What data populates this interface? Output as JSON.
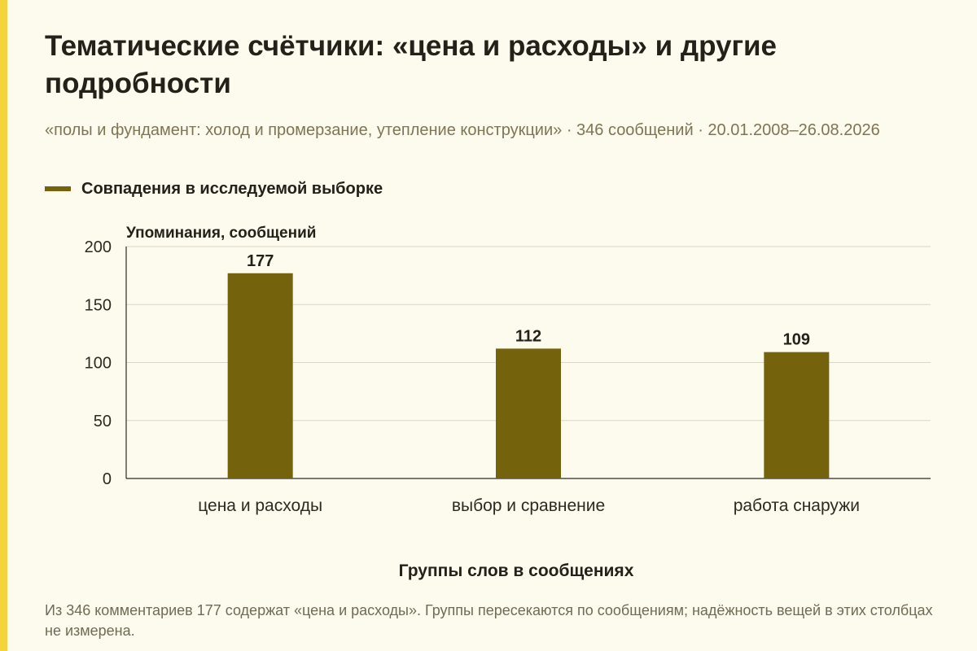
{
  "title": "Тематические счётчики: «цена и расходы» и другие подробности",
  "subtitle": "«полы и фундамент: холод и промерзание, утепление конструкции» · 346 сообщений · 20.01.2008–26.08.2026",
  "legend": {
    "label": "Совпадения в исследуемой выборке",
    "color": "#74620c"
  },
  "colors": {
    "accent_stripe": "#f5d33d",
    "background": "#fdfaee",
    "bar": "#74620c",
    "grid": "#d9d6c8",
    "axis": "#2b2b22"
  },
  "chart_data": {
    "type": "bar",
    "categories": [
      "цена и расходы",
      "выбор и сравнение",
      "работа снаружи"
    ],
    "series": [
      {
        "name": "Совпадения в исследуемой выборке",
        "values": [
          177,
          112,
          109
        ]
      }
    ],
    "data_labels": [
      "177",
      "112",
      "109"
    ],
    "ylabel": "Упоминания, сообщений",
    "xlabel": "Группы слов в сообщениях",
    "ylim": [
      0,
      200
    ],
    "yticks": [
      0,
      50,
      100,
      150,
      200
    ],
    "ytick_labels": [
      "0",
      "50",
      "100",
      "150",
      "200"
    ],
    "grid": true,
    "legend_position": "top-left"
  },
  "footnote": "Из 346 комментариев 177 содержат «цена и расходы». Группы пересекаются по сообщениям; надёжность вещей в этих столбцах не измерена."
}
